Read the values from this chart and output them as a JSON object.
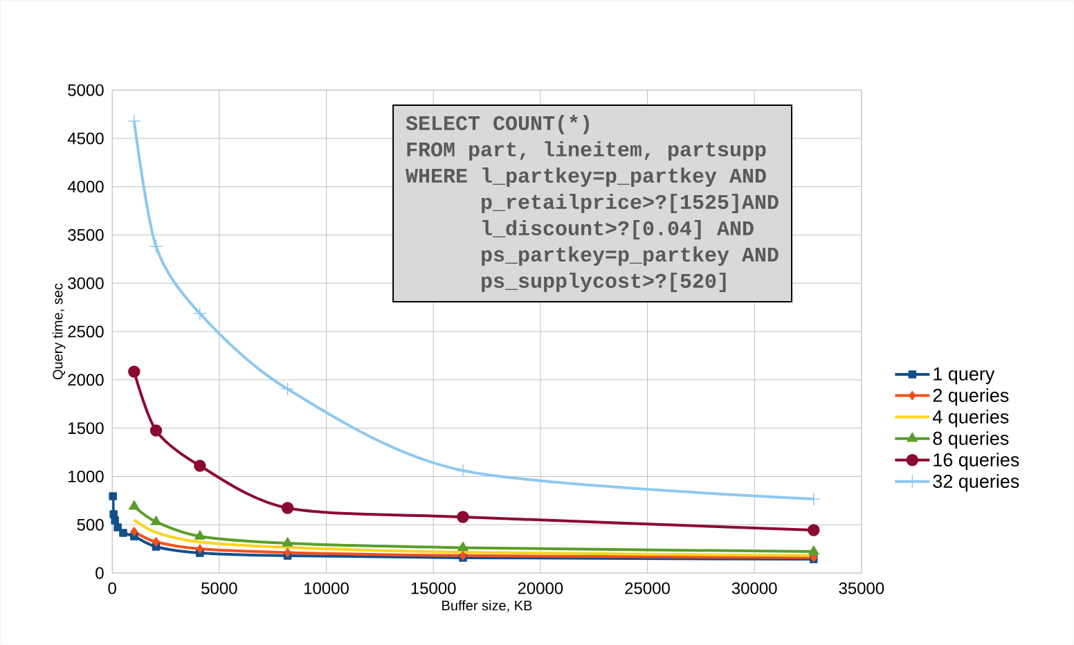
{
  "chart_data": {
    "type": "line",
    "xlabel": "Buffer size, KB",
    "ylabel": "Query time, sec",
    "xlim": [
      0,
      35000
    ],
    "ylim": [
      0,
      5000
    ],
    "xticks": [
      0,
      5000,
      10000,
      15000,
      20000,
      25000,
      30000,
      35000
    ],
    "yticks": [
      0,
      500,
      1000,
      1500,
      2000,
      2500,
      3000,
      3500,
      4000,
      4500,
      5000
    ],
    "grid": true,
    "legend": "right",
    "annotations": [
      "SELECT COUNT(*)",
      "FROM part, lineitem, partsupp",
      "WHERE l_partkey=p_partkey AND",
      "p_retailprice>?[1525]AND",
      "l_discount>?[0.04] AND",
      "ps_partkey=p_partkey AND",
      "ps_supplycost>?[520]"
    ],
    "series": [
      {
        "name": "1 query",
        "color": "#124f8c",
        "marker": "square",
        "x": [
          32,
          64,
          128,
          256,
          512,
          1024,
          2048,
          4096,
          8192,
          16384,
          32768
        ],
        "values": [
          795,
          609,
          545,
          473,
          415,
          380,
          272,
          208,
          179,
          158,
          143
        ]
      },
      {
        "name": "2 queries",
        "color": "#f4511e",
        "marker": "diamond",
        "x": [
          1024,
          2048,
          4096,
          8192,
          16384,
          32768
        ],
        "values": [
          430,
          322,
          250,
          212,
          180,
          160
        ]
      },
      {
        "name": "4 queries",
        "color": "#ffd320",
        "marker": "none",
        "x": [
          1024,
          2048,
          4096,
          8192,
          16384,
          32768
        ],
        "values": [
          550,
          420,
          320,
          265,
          215,
          180
        ]
      },
      {
        "name": "8 queries",
        "color": "#5a9e2a",
        "marker": "triangle",
        "x": [
          1024,
          2048,
          4096,
          8192,
          16384,
          32768
        ],
        "values": [
          690,
          530,
          380,
          308,
          262,
          222
        ]
      },
      {
        "name": "16 queries",
        "color": "#8b0a32",
        "marker": "circle",
        "x": [
          1024,
          2048,
          4096,
          8192,
          16384,
          32768
        ],
        "values": [
          2085,
          1475,
          1110,
          673,
          580,
          444
        ]
      },
      {
        "name": "32 queries",
        "color": "#8ec8f0",
        "marker": "cross",
        "x": [
          1024,
          2048,
          4096,
          8192,
          16384,
          32768
        ],
        "values": [
          4678,
          3381,
          2686,
          1905,
          1060,
          766
        ]
      }
    ]
  }
}
